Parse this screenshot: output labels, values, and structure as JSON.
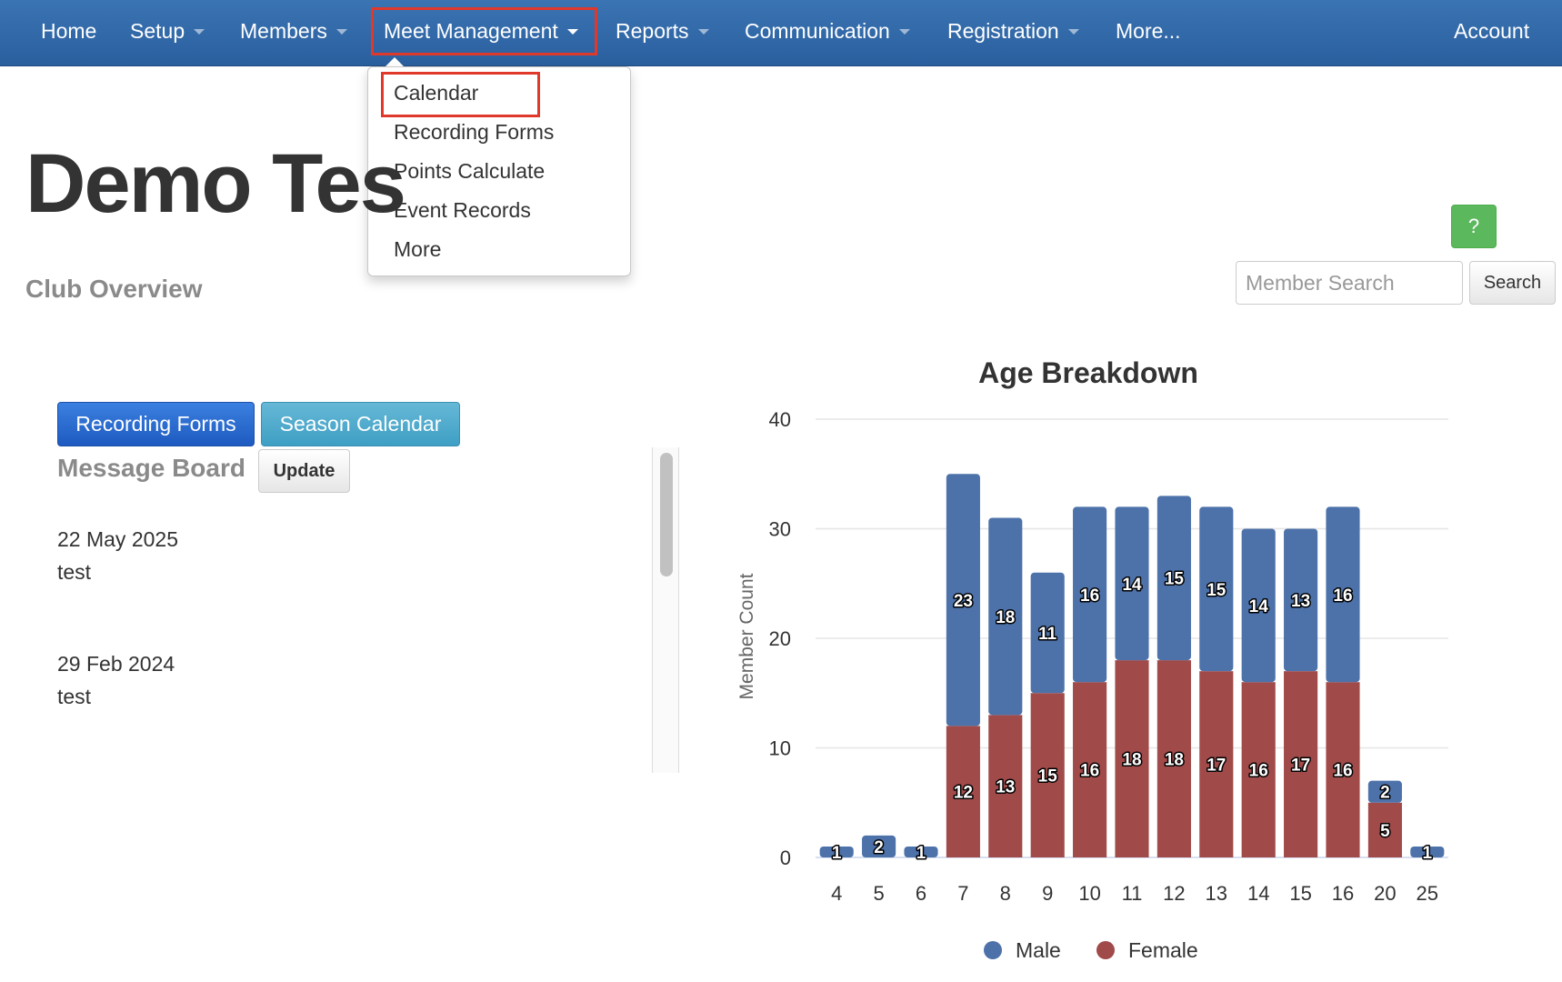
{
  "navbar": {
    "items": [
      {
        "label": "Home",
        "has_caret": false
      },
      {
        "label": "Setup",
        "has_caret": true
      },
      {
        "label": "Members",
        "has_caret": true
      },
      {
        "label": "Meet Management",
        "has_caret": true,
        "active": true
      },
      {
        "label": "Reports",
        "has_caret": true
      },
      {
        "label": "Communication",
        "has_caret": true
      },
      {
        "label": "Registration",
        "has_caret": true
      },
      {
        "label": "More...",
        "has_caret": false
      }
    ],
    "account": "Account"
  },
  "dropdown": {
    "items": [
      "Calendar",
      "Recording Forms",
      "Points Calculate",
      "Event Records",
      "More"
    ],
    "highlighted": "Calendar"
  },
  "page": {
    "title": "Demo Tes",
    "subtitle": "Club Overview"
  },
  "search": {
    "placeholder": "Member Search",
    "button": "Search",
    "help": "?"
  },
  "buttons": {
    "recording_forms": "Recording Forms",
    "season_calendar": "Season Calendar"
  },
  "message_board": {
    "title": "Message Board",
    "update": "Update",
    "messages": [
      {
        "date": "22 May 2025",
        "text": "test"
      },
      {
        "date": "29 Feb 2024",
        "text": "test"
      }
    ]
  },
  "colors": {
    "navbar": "#2f68a8",
    "male": "#4d72aa",
    "female": "#a04a49",
    "highlight": "#e0392b"
  },
  "chart_data": {
    "type": "bar",
    "stacked": true,
    "title": "Age Breakdown",
    "xlabel": "",
    "ylabel": "Member Count",
    "ylim": [
      0,
      40
    ],
    "yticks": [
      0,
      10,
      20,
      30,
      40
    ],
    "categories": [
      "4",
      "5",
      "6",
      "7",
      "8",
      "9",
      "10",
      "11",
      "12",
      "13",
      "14",
      "15",
      "16",
      "20",
      "25"
    ],
    "series": [
      {
        "name": "Female",
        "color": "#a04a49",
        "values": [
          0,
          0,
          0,
          12,
          13,
          15,
          16,
          18,
          18,
          17,
          16,
          17,
          16,
          5,
          0
        ]
      },
      {
        "name": "Male",
        "color": "#4d72aa",
        "values": [
          1,
          2,
          1,
          23,
          18,
          11,
          16,
          14,
          15,
          15,
          14,
          13,
          16,
          2,
          1
        ]
      }
    ],
    "legend": [
      "Male",
      "Female"
    ],
    "legend_position": "bottom",
    "grid": true
  }
}
